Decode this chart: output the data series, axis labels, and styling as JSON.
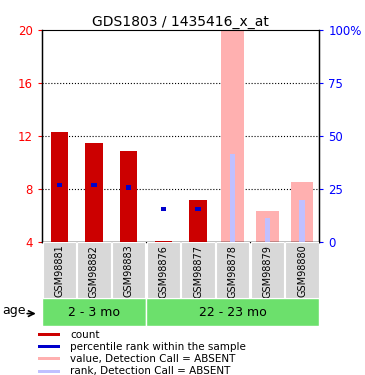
{
  "title": "GDS1803 / 1435416_x_at",
  "samples": [
    "GSM98881",
    "GSM98882",
    "GSM98883",
    "GSM98876",
    "GSM98877",
    "GSM98878",
    "GSM98879",
    "GSM98880"
  ],
  "group_labels": [
    "2 - 3 mo",
    "22 - 23 mo"
  ],
  "ylim": [
    4,
    20
  ],
  "yticks": [
    4,
    8,
    12,
    16,
    20
  ],
  "yticklabels_left": [
    "4",
    "8",
    "12",
    "16",
    "20"
  ],
  "yticklabels_right": [
    "0",
    "25",
    "50",
    "75",
    "100%"
  ],
  "right_ylim": [
    0,
    100
  ],
  "right_yticks": [
    0,
    25,
    50,
    75,
    100
  ],
  "count_color": "#cc0000",
  "rank_color": "#0000cc",
  "absent_value_color": "#ffb0b0",
  "absent_rank_color": "#c0c0ff",
  "bg_color": "#d8d8d8",
  "group_color": "#6ce06c",
  "count_values": [
    12.3,
    11.5,
    10.9,
    4.1,
    7.2,
    null,
    null,
    null
  ],
  "absent_value_values": [
    null,
    null,
    null,
    null,
    null,
    20.0,
    6.3,
    8.5
  ],
  "absent_rank_values": [
    null,
    null,
    null,
    null,
    null,
    10.6,
    5.8,
    7.2
  ],
  "rank_marker_values": [
    8.3,
    8.3,
    8.1,
    6.5,
    6.5,
    null,
    null,
    null
  ],
  "rank_marker_absent": [
    null,
    null,
    null,
    null,
    null,
    10.6,
    null,
    7.2
  ],
  "age_label": "age",
  "legend_items": [
    {
      "label": "count",
      "color": "#cc0000"
    },
    {
      "label": "percentile rank within the sample",
      "color": "#0000cc"
    },
    {
      "label": "value, Detection Call = ABSENT",
      "color": "#ffb0b0"
    },
    {
      "label": "rank, Detection Call = ABSENT",
      "color": "#c0c0ff"
    }
  ]
}
